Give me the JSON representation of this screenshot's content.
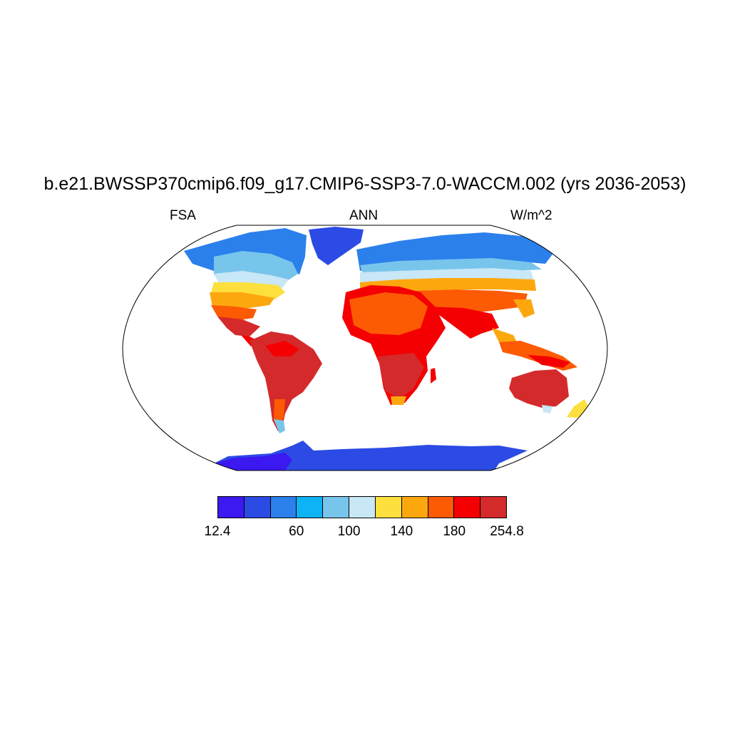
{
  "title": "b.e21.BWSSP370cmip6.f09_g17.CMIP6-SSP3-7.0-WACCM.002 (yrs 2036-2053)",
  "variable": "FSA",
  "season": "ANN",
  "units": "W/m^2",
  "colorbar": {
    "colors": [
      "#3b19f0",
      "#2c4be4",
      "#2b80ec",
      "#0eb3f5",
      "#78c5ec",
      "#c8e7f7",
      "#fde03d",
      "#fda70f",
      "#fd5a04",
      "#f40003",
      "#d52a2b"
    ],
    "tick_labels": [
      {
        "text": "12.4",
        "boundary": 0
      },
      {
        "text": "60",
        "boundary": 3
      },
      {
        "text": "100",
        "boundary": 5
      },
      {
        "text": "140",
        "boundary": 7
      },
      {
        "text": "180",
        "boundary": 9
      },
      {
        "text": "254.8",
        "boundary": 11
      }
    ]
  }
}
